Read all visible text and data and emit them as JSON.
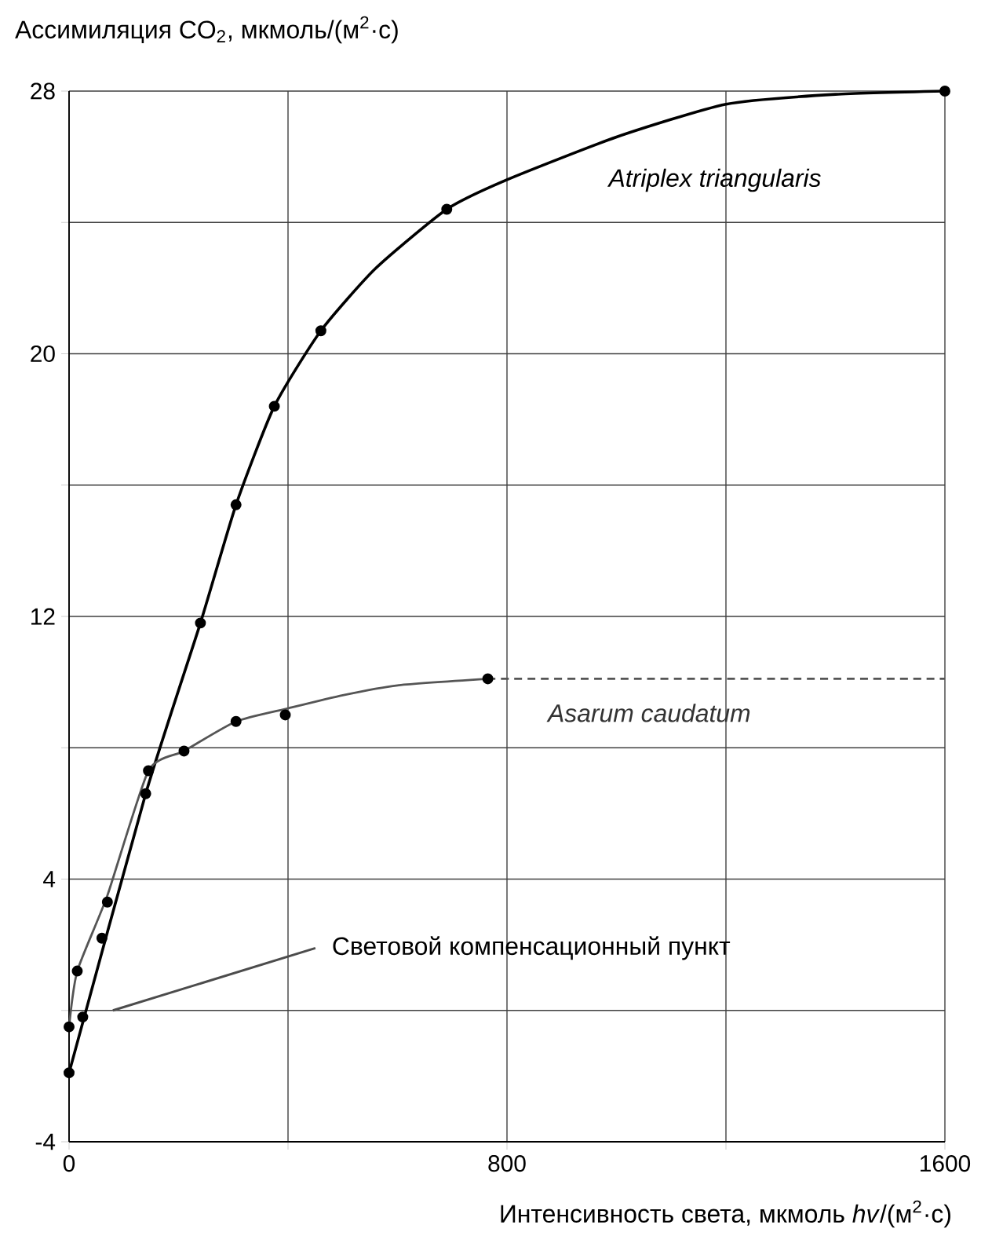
{
  "chart_data": {
    "type": "line",
    "ylabel": "Ассимиляция CO$_{2}$, мкмоль/(м$^{2}$·с)",
    "xlabel": "Интенсивность света, мкмоль *hv*/(м$^{2}$·с)",
    "xlim": [
      0,
      1600
    ],
    "ylim": [
      -4,
      28
    ],
    "xticks": [
      0,
      {
        "value": 400,
        "label": null
      },
      800,
      {
        "value": 1200,
        "label": null
      },
      1600
    ],
    "yticks": [
      -4,
      {
        "value": 0,
        "label": null
      },
      4,
      {
        "value": 8,
        "label": null
      },
      12,
      {
        "value": 16,
        "label": null
      },
      20,
      {
        "value": 24,
        "label": null
      },
      28
    ],
    "grid": true,
    "series": [
      {
        "name": "Atriplex triangularis",
        "color": "#000000",
        "line_style": "solid",
        "x": [
          0,
          140,
          240,
          305,
          375,
          460,
          560,
          690,
          800,
          1000,
          1200,
          1400,
          1600
        ],
        "values": [
          -1.9,
          6.6,
          11.8,
          15.4,
          18.4,
          20.7,
          22.6,
          24.4,
          25.3,
          26.6,
          27.6,
          27.9,
          28
        ]
      },
      {
        "type": "scatter",
        "marker": "circle",
        "color": "#000000",
        "x": [
          0,
          25,
          60,
          70,
          140,
          240,
          305,
          375,
          460,
          690,
          1600
        ],
        "values": [
          -1.9,
          -0.2,
          2.2,
          3.3,
          6.6,
          11.8,
          15.4,
          18.4,
          20.7,
          24.4,
          28
        ]
      },
      {
        "name": "Asarum caudatum",
        "color": "#555555",
        "line_style": "solid",
        "x": [
          0,
          15,
          70,
          145,
          210,
          305,
          400,
          500,
          600,
          765
        ],
        "values": [
          -0.5,
          1.2,
          3.5,
          7.3,
          7.9,
          8.8,
          9.2,
          9.6,
          9.9,
          10.1
        ]
      },
      {
        "type": "scatter",
        "marker": "circle",
        "color": "#000000",
        "x": [
          0,
          15,
          145,
          210,
          305,
          395,
          765
        ],
        "values": [
          -0.5,
          1.2,
          7.3,
          7.9,
          8.8,
          9.0,
          10.1
        ]
      },
      {
        "color": "#555555",
        "line_style": "dashed",
        "x": [
          765,
          1600
        ],
        "values": [
          10.1,
          10.1
        ]
      }
    ],
    "annotations": [
      "Световой компенсационный пункт"
    ]
  }
}
